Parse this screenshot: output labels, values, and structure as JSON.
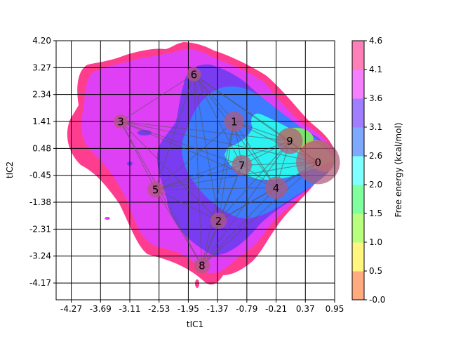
{
  "chart_data": {
    "type": "contour",
    "xlabel": "tIC1",
    "ylabel": "tIC2",
    "xlim": [
      -4.57,
      0.95
    ],
    "ylim": [
      -4.75,
      4.2
    ],
    "x_ticks": [
      "-4.27",
      "-3.69",
      "-3.11",
      "-2.53",
      "-1.95",
      "-1.37",
      "-0.79",
      "-0.21",
      "0.37",
      "0.95"
    ],
    "x_tick_values": [
      -4.27,
      -3.69,
      -3.11,
      -2.53,
      -1.95,
      -1.37,
      -0.79,
      -0.21,
      0.37,
      0.95
    ],
    "y_ticks": [
      "4.20",
      "3.27",
      "2.34",
      "1.41",
      "0.48",
      "-0.45",
      "-1.38",
      "-2.31",
      "-3.24",
      "-4.17"
    ],
    "y_tick_values": [
      4.2,
      3.27,
      2.34,
      1.41,
      0.48,
      -0.45,
      -1.38,
      -2.31,
      -3.24,
      -4.17
    ],
    "grid": true,
    "colorbar": {
      "label": "Free energy (kcal/mol)",
      "tick_labels": [
        "-0.0",
        "0.5",
        "1.0",
        "1.5",
        "2.0",
        "2.6",
        "3.1",
        "3.6",
        "4.1",
        "4.6"
      ],
      "levels": [
        0.0,
        0.5,
        1.0,
        1.5,
        2.0,
        2.6,
        3.1,
        3.6,
        4.1,
        4.6
      ],
      "colors": [
        "#ffab7f",
        "#fff57f",
        "#b9ff7f",
        "#7fff9d",
        "#7fffff",
        "#7fa9ff",
        "#9f7fff",
        "#f57fff",
        "#ff7fb9"
      ]
    },
    "contour_colors": {
      "outer": "#ff3d8f",
      "magenta": "#e040f5",
      "violet": "#7a3cf0",
      "blue": "#3d7bff",
      "cyan": "#2df2f2",
      "green": "#7de36e",
      "orange": "#e9a24f"
    },
    "nodes": [
      {
        "label": "0",
        "x": 0.62,
        "y": 0.0,
        "size": 9
      },
      {
        "label": "1",
        "x": -1.04,
        "y": 1.41,
        "size": 3
      },
      {
        "label": "2",
        "x": -1.35,
        "y": -2.02,
        "size": 2
      },
      {
        "label": "3",
        "x": -3.29,
        "y": 1.41,
        "size": 1.5
      },
      {
        "label": "4",
        "x": -0.21,
        "y": -0.88,
        "size": 3.5
      },
      {
        "label": "5",
        "x": -2.6,
        "y": -0.94,
        "size": 2
      },
      {
        "label": "6",
        "x": -1.84,
        "y": 3.04,
        "size": 1.5
      },
      {
        "label": "7",
        "x": -0.89,
        "y": -0.1,
        "size": 3
      },
      {
        "label": "8",
        "x": -1.68,
        "y": -3.56,
        "size": 2
      },
      {
        "label": "9",
        "x": 0.06,
        "y": 0.74,
        "size": 4.5
      }
    ]
  }
}
